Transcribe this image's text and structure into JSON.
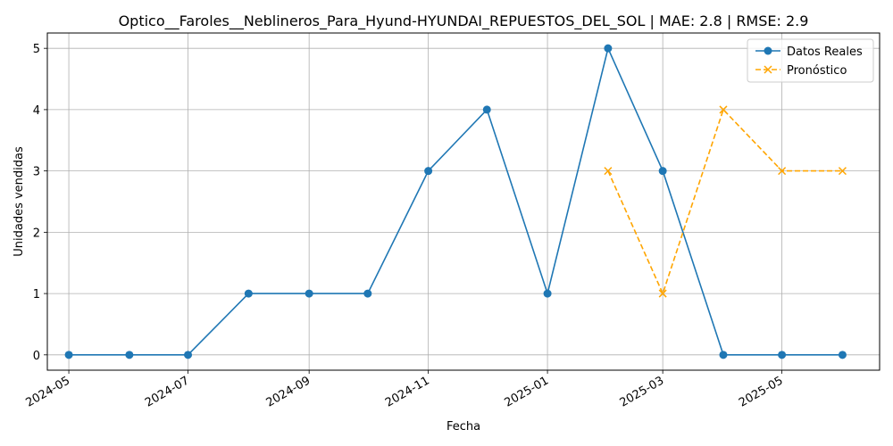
{
  "chart_data": {
    "type": "line",
    "title": "Optico__Faroles__Neblineros_Para_Hyund-HYUNDAI_REPUESTOS_DEL_SOL | MAE: 2.8 | RMSE: 2.9",
    "xlabel": "Fecha",
    "ylabel": "Unidades vendidas",
    "x_ticks": [
      "2024-05",
      "2024-07",
      "2024-09",
      "2024-11",
      "2025-01",
      "2025-03",
      "2025-05"
    ],
    "y_ticks": [
      "0",
      "1",
      "2",
      "3",
      "4",
      "5"
    ],
    "ylim": [
      -0.25,
      5.25
    ],
    "xlim": [
      "2024-04-20",
      "2025-06-20"
    ],
    "grid": true,
    "legend_position": "upper-right",
    "series": [
      {
        "name": "Datos Reales",
        "color": "#1f77b4",
        "line_style": "solid",
        "marker": "circle",
        "x": [
          "2024-05-01",
          "2024-06-01",
          "2024-07-01",
          "2024-08-01",
          "2024-09-01",
          "2024-10-01",
          "2024-11-01",
          "2024-12-01",
          "2025-01-01",
          "2025-02-01",
          "2025-03-01",
          "2025-04-01",
          "2025-05-01",
          "2025-06-01"
        ],
        "values": [
          0,
          0,
          0,
          1,
          1,
          1,
          3,
          4,
          1,
          5,
          3,
          0,
          0,
          0
        ]
      },
      {
        "name": "Pronóstico",
        "color": "#ffa500",
        "line_style": "dashed",
        "marker": "x",
        "x": [
          "2025-02-01",
          "2025-03-01",
          "2025-04-01",
          "2025-05-01",
          "2025-06-01"
        ],
        "values": [
          3,
          1,
          4,
          3,
          3
        ]
      }
    ]
  }
}
